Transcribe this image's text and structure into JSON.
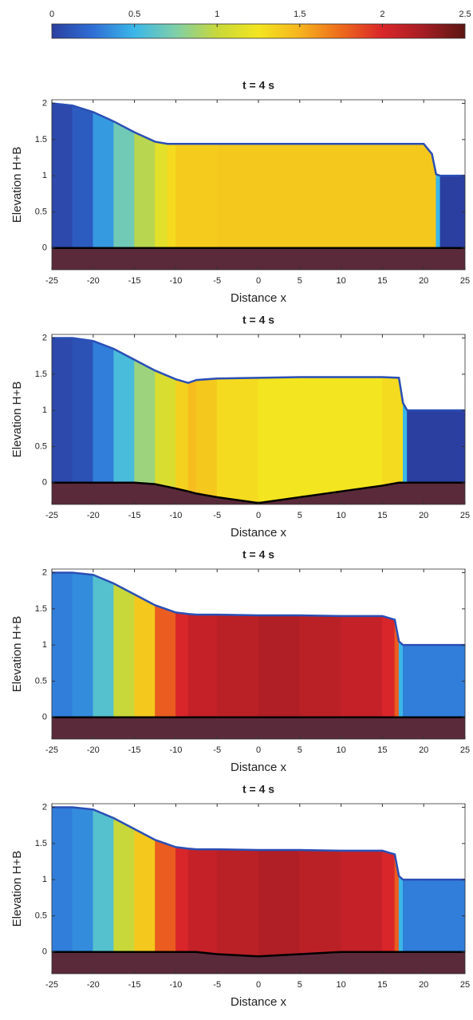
{
  "chart_data": [
    {
      "type": "colorbar",
      "clim": [
        0,
        2.5
      ],
      "ticks": [
        0,
        0.5,
        1,
        1.5,
        2,
        2.5
      ],
      "colors": [
        "#2b3fa0",
        "#2f6fd6",
        "#3bb7e8",
        "#7fcfa8",
        "#c8d83a",
        "#f3e51f",
        "#f6b41e",
        "#ee6a1c",
        "#d9262a",
        "#a51d24",
        "#5a1612"
      ]
    },
    {
      "type": "profile",
      "title": "t = 4 s",
      "xlabel": "Distance x",
      "ylabel": "Elevation H+B",
      "xlim": [
        -25,
        25
      ],
      "ylim": [
        -0.3,
        2.05
      ],
      "xticks": [
        -25,
        -20,
        -15,
        -10,
        -5,
        0,
        5,
        10,
        15,
        20,
        25
      ],
      "yticks": [
        0,
        0.5,
        1,
        1.5,
        2
      ],
      "x": [
        -25,
        -22.5,
        -20,
        -17.5,
        -15,
        -12.5,
        -11,
        -10,
        -5,
        0,
        5,
        10,
        15,
        20,
        21,
        21.5,
        22,
        25
      ],
      "surface": [
        2,
        1.97,
        1.88,
        1.75,
        1.6,
        1.47,
        1.44,
        1.44,
        1.44,
        1.44,
        1.44,
        1.44,
        1.44,
        1.44,
        1.3,
        1.02,
        1,
        1
      ],
      "bed": [
        0,
        0,
        0,
        0,
        0,
        0,
        0,
        0,
        0,
        0,
        0,
        0,
        0,
        0,
        0,
        0,
        0,
        0
      ],
      "speed": [
        0.05,
        0.15,
        0.4,
        0.7,
        0.95,
        1.15,
        1.3,
        1.38,
        1.4,
        1.4,
        1.4,
        1.4,
        1.4,
        1.4,
        1.4,
        0.5,
        0,
        0
      ],
      "colors": {
        "surface": "#2a4fb5",
        "bed": "#000000",
        "ground": "#5a2a3a"
      }
    },
    {
      "type": "profile",
      "title": "t = 4 s",
      "xlabel": "Distance x",
      "ylabel": "Elevation H+B",
      "xlim": [
        -25,
        25
      ],
      "ylim": [
        -0.3,
        2.05
      ],
      "xticks": [
        -25,
        -20,
        -15,
        -10,
        -5,
        0,
        5,
        10,
        15,
        20,
        25
      ],
      "yticks": [
        0,
        0.5,
        1,
        1.5,
        2
      ],
      "x": [
        -25,
        -22.5,
        -20,
        -17.5,
        -15,
        -12.5,
        -10,
        -8.5,
        -7.5,
        -5,
        0,
        5,
        10,
        15,
        17,
        17.5,
        18,
        20,
        25
      ],
      "surface": [
        2,
        2,
        1.96,
        1.85,
        1.7,
        1.55,
        1.43,
        1.38,
        1.42,
        1.44,
        1.45,
        1.46,
        1.46,
        1.46,
        1.45,
        1.1,
        1,
        1,
        1
      ],
      "bed": [
        0,
        0,
        0,
        0,
        0,
        -0.02,
        -0.08,
        -0.12,
        -0.15,
        -0.2,
        -0.28,
        -0.2,
        -0.12,
        -0.04,
        0,
        0,
        0,
        0,
        0
      ],
      "speed": [
        0.05,
        0.1,
        0.3,
        0.55,
        0.85,
        1.1,
        1.35,
        1.45,
        1.4,
        1.3,
        1.25,
        1.25,
        1.25,
        1.3,
        1.3,
        0.5,
        0,
        0,
        0
      ],
      "colors": {
        "surface": "#2a4fb5",
        "bed": "#000000",
        "ground": "#5a2a3a"
      }
    },
    {
      "type": "profile",
      "title": "t = 4 s",
      "xlabel": "Distance x",
      "ylabel": "Elevation H+B",
      "xlim": [
        -25,
        25
      ],
      "ylim": [
        -0.3,
        2.05
      ],
      "xticks": [
        -25,
        -20,
        -15,
        -10,
        -5,
        0,
        5,
        10,
        15,
        20,
        25
      ],
      "yticks": [
        0,
        0.5,
        1,
        1.5,
        2
      ],
      "x": [
        -25,
        -22.5,
        -20,
        -17.5,
        -15,
        -12.5,
        -10,
        -8.5,
        -7.5,
        -5,
        0,
        5,
        10,
        15,
        16.5,
        17,
        17.5,
        20,
        25
      ],
      "surface": [
        2,
        2,
        1.97,
        1.85,
        1.7,
        1.55,
        1.45,
        1.43,
        1.42,
        1.42,
        1.41,
        1.41,
        1.4,
        1.4,
        1.35,
        1.05,
        1,
        1,
        1
      ],
      "bed": [
        0,
        0,
        0,
        0,
        0,
        0,
        0,
        0,
        0,
        0,
        0,
        0,
        0,
        0,
        0,
        0,
        0,
        0,
        0
      ],
      "speed": [
        0.3,
        0.35,
        0.6,
        1,
        1.4,
        1.8,
        2,
        2.1,
        2.1,
        2.15,
        2.2,
        2.15,
        2.1,
        2,
        1.8,
        0.5,
        0.3,
        0.3,
        0.3
      ],
      "colors": {
        "surface": "#2a4fb5",
        "bed": "#000000",
        "ground": "#5a2a3a"
      }
    },
    {
      "type": "profile",
      "title": "t = 4 s",
      "xlabel": "Distance x",
      "ylabel": "Elevation H+B",
      "xlim": [
        -25,
        25
      ],
      "ylim": [
        -0.3,
        2.05
      ],
      "xticks": [
        -25,
        -20,
        -15,
        -10,
        -5,
        0,
        5,
        10,
        15,
        20,
        25
      ],
      "yticks": [
        0,
        0.5,
        1,
        1.5,
        2
      ],
      "x": [
        -25,
        -22.5,
        -20,
        -17.5,
        -15,
        -12.5,
        -10,
        -8.5,
        -7.5,
        -5,
        0,
        5,
        10,
        15,
        16.5,
        17,
        17.5,
        20,
        25
      ],
      "surface": [
        2,
        2,
        1.97,
        1.85,
        1.7,
        1.55,
        1.45,
        1.43,
        1.42,
        1.42,
        1.41,
        1.41,
        1.4,
        1.4,
        1.35,
        1.05,
        1,
        1,
        1
      ],
      "bed": [
        0,
        0,
        0,
        0,
        0,
        0,
        0,
        0,
        0,
        -0.03,
        -0.06,
        -0.03,
        0,
        0,
        0,
        0,
        0,
        0,
        0
      ],
      "speed": [
        0.3,
        0.35,
        0.6,
        1,
        1.4,
        1.8,
        2,
        2.1,
        2.1,
        2.15,
        2.2,
        2.15,
        2.1,
        2,
        1.8,
        0.5,
        0.3,
        0.3,
        0.3
      ],
      "colors": {
        "surface": "#2a4fb5",
        "bed": "#000000",
        "ground": "#5a2a3a"
      }
    }
  ]
}
